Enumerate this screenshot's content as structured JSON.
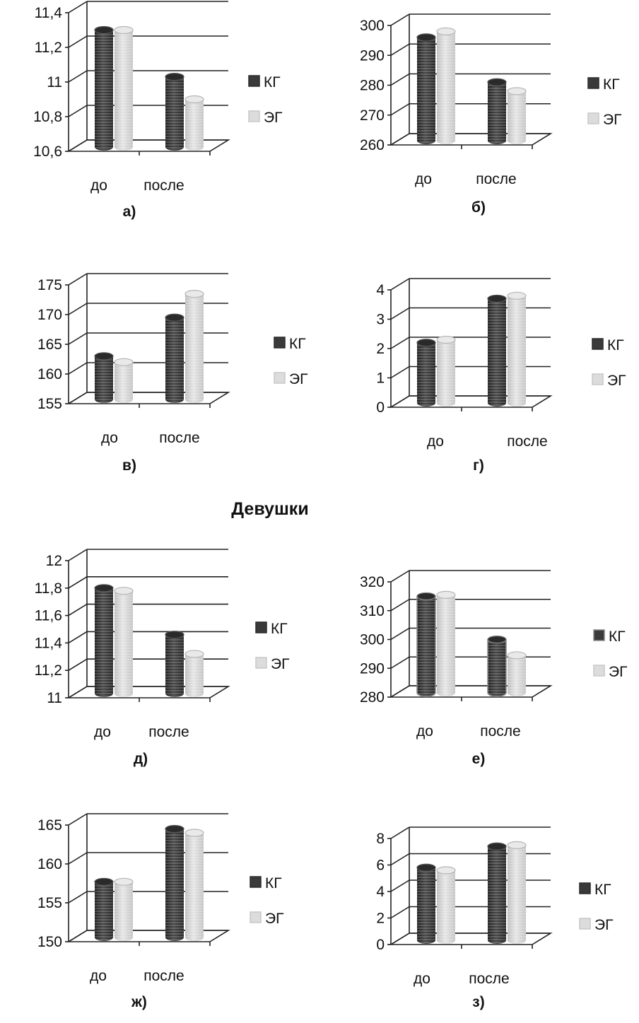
{
  "section_heading": "Девушки",
  "colors": {
    "kg": "#3a3a3a",
    "eg": "#cfcfcf"
  },
  "chart_data": [
    {
      "id": "a",
      "type": "bar",
      "caption": "а)",
      "categories": [
        "до",
        "после"
      ],
      "ylim": [
        10.6,
        11.4
      ],
      "yticks": [
        "10,6",
        "10,8",
        "11",
        "11,2",
        "11,4"
      ],
      "series": [
        {
          "name": "КГ",
          "values": [
            11.3,
            11.03
          ]
        },
        {
          "name": "ЭГ",
          "values": [
            11.3,
            10.9
          ]
        }
      ]
    },
    {
      "id": "b",
      "type": "bar",
      "caption": "б)",
      "categories": [
        "до",
        "после"
      ],
      "ylim": [
        260,
        300
      ],
      "yticks": [
        "260",
        "270",
        "280",
        "290",
        "300"
      ],
      "series": [
        {
          "name": "КГ",
          "values": [
            296,
            281
          ]
        },
        {
          "name": "ЭГ",
          "values": [
            298,
            278
          ]
        }
      ]
    },
    {
      "id": "v",
      "type": "bar",
      "caption": "в)",
      "categories": [
        "до",
        "после"
      ],
      "ylim": [
        155,
        175
      ],
      "yticks": [
        "155",
        "160",
        "165",
        "170",
        "175"
      ],
      "series": [
        {
          "name": "КГ",
          "values": [
            163,
            169.5
          ]
        },
        {
          "name": "ЭГ",
          "values": [
            162,
            173.5
          ]
        }
      ]
    },
    {
      "id": "g",
      "type": "bar",
      "caption": "г)",
      "categories": [
        "до",
        "после"
      ],
      "ylim": [
        0,
        4
      ],
      "yticks": [
        "0",
        "1",
        "2",
        "3",
        "4"
      ],
      "series": [
        {
          "name": "КГ",
          "values": [
            2.2,
            3.7
          ]
        },
        {
          "name": "ЭГ",
          "values": [
            2.3,
            3.8
          ]
        }
      ]
    },
    {
      "id": "d",
      "type": "bar",
      "caption": "д)",
      "categories": [
        "до",
        "после"
      ],
      "ylim": [
        11,
        12
      ],
      "yticks": [
        "11",
        "11,2",
        "11,4",
        "11,6",
        "11,8",
        "12"
      ],
      "series": [
        {
          "name": "КГ",
          "values": [
            11.8,
            11.46
          ]
        },
        {
          "name": "ЭГ",
          "values": [
            11.78,
            11.32
          ]
        }
      ]
    },
    {
      "id": "e",
      "type": "bar",
      "caption": "е)",
      "categories": [
        "до",
        "после"
      ],
      "ylim": [
        280,
        320
      ],
      "yticks": [
        "280",
        "290",
        "300",
        "310",
        "320"
      ],
      "series": [
        {
          "name": "КГ",
          "values": [
            315,
            300
          ]
        },
        {
          "name": "ЭГ",
          "values": [
            315.5,
            294.5
          ]
        }
      ]
    },
    {
      "id": "zh",
      "type": "bar",
      "caption": "ж)",
      "categories": [
        "до",
        "после"
      ],
      "ylim": [
        150,
        165
      ],
      "yticks": [
        "150",
        "155",
        "160",
        "165"
      ],
      "series": [
        {
          "name": "КГ",
          "values": [
            157.7,
            164.5
          ]
        },
        {
          "name": "ЭГ",
          "values": [
            157.7,
            164
          ]
        }
      ]
    },
    {
      "id": "z",
      "type": "bar",
      "caption": "з)",
      "categories": [
        "до",
        "после"
      ],
      "ylim": [
        0,
        8
      ],
      "yticks": [
        "0",
        "2",
        "4",
        "6",
        "8"
      ],
      "series": [
        {
          "name": "КГ",
          "values": [
            5.8,
            7.4
          ]
        },
        {
          "name": "ЭГ",
          "values": [
            5.6,
            7.5
          ]
        }
      ]
    }
  ]
}
